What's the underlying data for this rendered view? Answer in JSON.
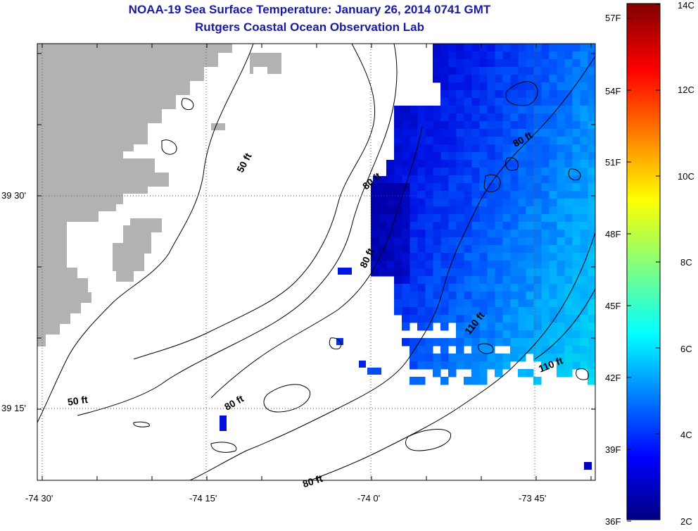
{
  "title": "NOAA-19 Sea Surface Temperature:  January 26, 2014 0741 GMT",
  "subtitle": "Rutgers Coastal Ocean Observation Lab",
  "lat_labels": [
    "39 30'",
    "39 15'"
  ],
  "lon_labels": [
    "-74 30'",
    "-74 15'",
    "-74 0'",
    "-73 45'"
  ],
  "contour_labels": [
    "50 ft",
    "80 ft",
    "80 ft",
    "80 ft",
    "50 ft",
    "80 ft",
    "80 ft",
    "110 ft",
    "110 ft"
  ],
  "colorbar": {
    "fahrenheit_labels": [
      "57F",
      "54F",
      "51F",
      "48F",
      "45F",
      "42F",
      "39F",
      "36F"
    ],
    "celsius_labels": [
      "14C",
      "12C",
      "10C",
      "8C",
      "6C",
      "4C",
      "2C"
    ],
    "min_c": 2,
    "max_c": 14
  },
  "colors": {
    "title": "#1a1aa0",
    "land": "#b2b2b2",
    "contour": "#000000"
  }
}
